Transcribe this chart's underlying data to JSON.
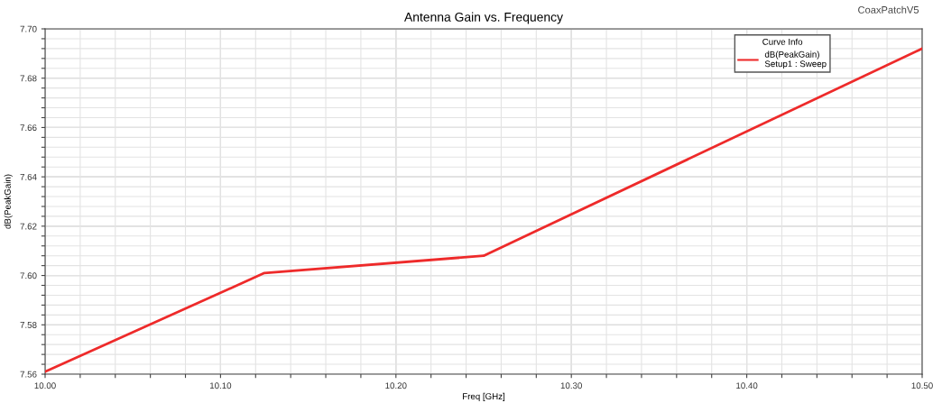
{
  "chart_data": {
    "type": "line",
    "title": "Antenna Gain vs. Frequency",
    "xlabel": "Freq [GHz]",
    "ylabel": "dB(PeakGain)",
    "legend_title": "Curve Info",
    "annotations": [
      "CoaxPatchV5"
    ],
    "series": [
      {
        "name": "dB(PeakGain)\nSetup1 : Sweep",
        "color": "#ee2a2a",
        "x": [
          10.0,
          10.125,
          10.25,
          10.5
        ],
        "values": [
          7.561,
          7.601,
          7.608,
          7.692
        ]
      }
    ],
    "xlim": [
      10.0,
      10.5
    ],
    "xticks": [
      {
        "value": 10.0,
        "label": "10.00"
      },
      {
        "value": 10.02,
        "label": null
      },
      {
        "value": 10.04,
        "label": null
      },
      {
        "value": 10.06,
        "label": null
      },
      {
        "value": 10.08,
        "label": null
      },
      {
        "value": 10.1,
        "label": "10.10"
      },
      {
        "value": 10.12,
        "label": null
      },
      {
        "value": 10.14,
        "label": null
      },
      {
        "value": 10.16,
        "label": null
      },
      {
        "value": 10.18,
        "label": null
      },
      {
        "value": 10.2,
        "label": "10.20"
      },
      {
        "value": 10.22,
        "label": null
      },
      {
        "value": 10.24,
        "label": null
      },
      {
        "value": 10.26,
        "label": null
      },
      {
        "value": 10.28,
        "label": null
      },
      {
        "value": 10.3,
        "label": "10.30"
      },
      {
        "value": 10.32,
        "label": null
      },
      {
        "value": 10.34,
        "label": null
      },
      {
        "value": 10.36,
        "label": null
      },
      {
        "value": 10.38,
        "label": null
      },
      {
        "value": 10.4,
        "label": "10.40"
      },
      {
        "value": 10.42,
        "label": null
      },
      {
        "value": 10.44,
        "label": null
      },
      {
        "value": 10.46,
        "label": null
      },
      {
        "value": 10.48,
        "label": null
      },
      {
        "value": 10.5,
        "label": "10.50"
      }
    ],
    "ylim": [
      7.56,
      7.7
    ],
    "yticks": [
      {
        "value": 7.56,
        "label": "7.56"
      },
      {
        "value": 7.564,
        "label": null
      },
      {
        "value": 7.568,
        "label": null
      },
      {
        "value": 7.572,
        "label": null
      },
      {
        "value": 7.576,
        "label": null
      },
      {
        "value": 7.58,
        "label": "7.58"
      },
      {
        "value": 7.584,
        "label": null
      },
      {
        "value": 7.588,
        "label": null
      },
      {
        "value": 7.592,
        "label": null
      },
      {
        "value": 7.596,
        "label": null
      },
      {
        "value": 7.6,
        "label": "7.60"
      },
      {
        "value": 7.604,
        "label": null
      },
      {
        "value": 7.608,
        "label": null
      },
      {
        "value": 7.612,
        "label": null
      },
      {
        "value": 7.616,
        "label": null
      },
      {
        "value": 7.62,
        "label": "7.62"
      },
      {
        "value": 7.624,
        "label": null
      },
      {
        "value": 7.628,
        "label": null
      },
      {
        "value": 7.632,
        "label": null
      },
      {
        "value": 7.636,
        "label": null
      },
      {
        "value": 7.64,
        "label": "7.64"
      },
      {
        "value": 7.644,
        "label": null
      },
      {
        "value": 7.648,
        "label": null
      },
      {
        "value": 7.652,
        "label": null
      },
      {
        "value": 7.656,
        "label": null
      },
      {
        "value": 7.66,
        "label": "7.66"
      },
      {
        "value": 7.664,
        "label": null
      },
      {
        "value": 7.668,
        "label": null
      },
      {
        "value": 7.672,
        "label": null
      },
      {
        "value": 7.676,
        "label": null
      },
      {
        "value": 7.68,
        "label": "7.68"
      },
      {
        "value": 7.684,
        "label": null
      },
      {
        "value": 7.688,
        "label": null
      },
      {
        "value": 7.692,
        "label": null
      },
      {
        "value": 7.696,
        "label": null
      },
      {
        "value": 7.7,
        "label": "7.70"
      }
    ],
    "grid": true,
    "legend": "top right",
    "marker": "none",
    "line_style": "solid"
  }
}
